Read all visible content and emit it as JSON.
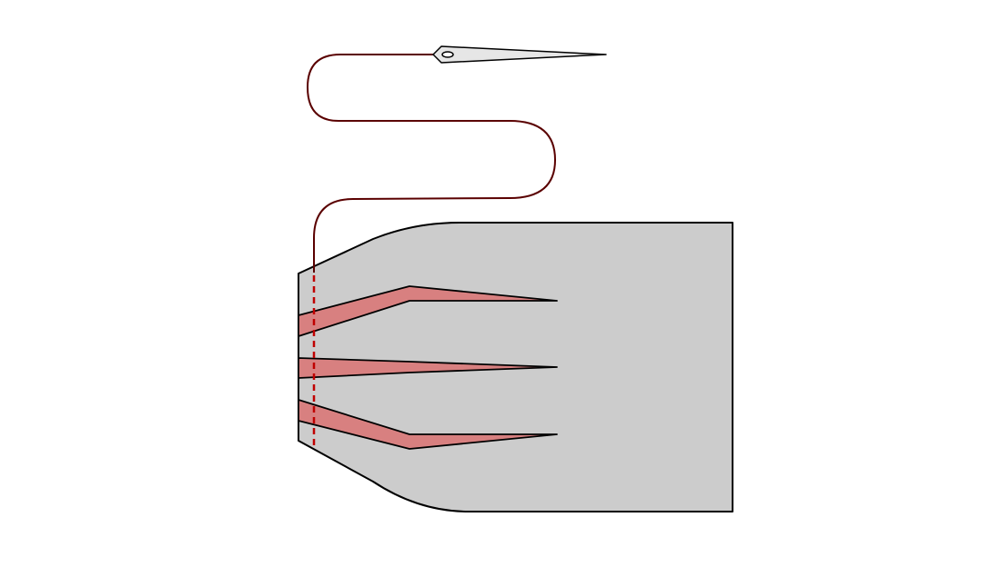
{
  "diagram": {
    "colors": {
      "background": "#ffffff",
      "fabric_fill": "#cccccc",
      "fabric_stroke": "#000000",
      "dart_fill": "#d88080",
      "dart_stroke": "#000000",
      "thread": "#5a0000",
      "stitch_line": "#c00000",
      "needle_fill": "#e6e6e6",
      "needle_stroke": "#000000"
    },
    "parts": {
      "fabric_panel": "fabric-panel",
      "darts": [
        "dart-upper",
        "dart-middle",
        "dart-lower"
      ],
      "stitch_line": "stitch-line",
      "thread": "thread",
      "needle": "needle-icon"
    }
  }
}
